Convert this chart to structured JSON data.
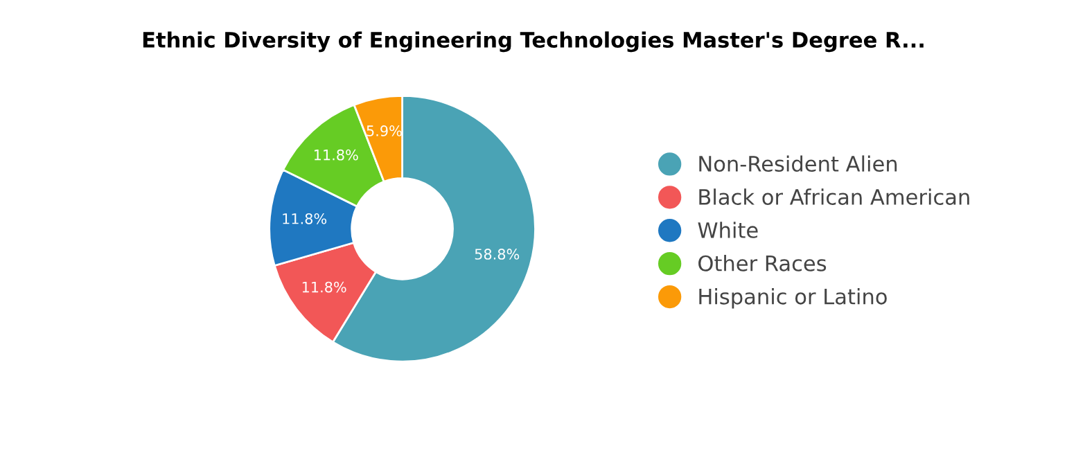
{
  "chart_data": {
    "type": "donut",
    "title": "Ethnic Diversity of Engineering Technologies Master's Degree R...",
    "categories": [
      "Non-Resident Alien",
      "Black or African American",
      "White",
      "Other Races",
      "Hispanic or Latino"
    ],
    "values": [
      58.8,
      11.8,
      11.8,
      11.8,
      5.9
    ],
    "colors": [
      "#4aa3b5",
      "#f25757",
      "#1f78c1",
      "#66cc24",
      "#fb9a08"
    ],
    "value_labels": [
      "58.8%",
      "11.8%",
      "11.8%",
      "11.8%",
      "5.9%"
    ],
    "legend": "right"
  }
}
